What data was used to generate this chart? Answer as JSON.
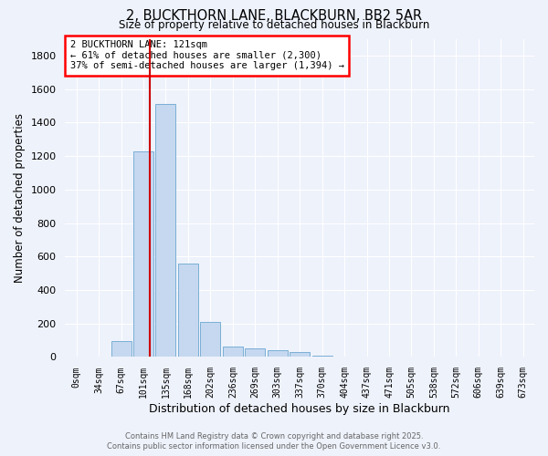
{
  "title": "2, BUCKTHORN LANE, BLACKBURN, BB2 5AR",
  "subtitle": "Size of property relative to detached houses in Blackburn",
  "xlabel": "Distribution of detached houses by size in Blackburn",
  "ylabel": "Number of detached properties",
  "bar_color": "#c5d8f0",
  "bar_edge_color": "#7aafd4",
  "categories": [
    "0sqm",
    "34sqm",
    "67sqm",
    "101sqm",
    "135sqm",
    "168sqm",
    "202sqm",
    "236sqm",
    "269sqm",
    "303sqm",
    "337sqm",
    "370sqm",
    "404sqm",
    "437sqm",
    "471sqm",
    "505sqm",
    "538sqm",
    "572sqm",
    "606sqm",
    "639sqm",
    "673sqm"
  ],
  "values": [
    0,
    0,
    95,
    1230,
    1510,
    560,
    210,
    65,
    50,
    38,
    30,
    10,
    5,
    2,
    1,
    0,
    0,
    0,
    0,
    0,
    0
  ],
  "ylim": [
    0,
    1900
  ],
  "yticks": [
    0,
    200,
    400,
    600,
    800,
    1000,
    1200,
    1400,
    1600,
    1800
  ],
  "annotation_text": "2 BUCKTHORN LANE: 121sqm\n← 61% of detached houses are smaller (2,300)\n37% of semi-detached houses are larger (1,394) →",
  "bg_color": "#eef2fb",
  "grid_color": "#ffffff",
  "footer_line1": "Contains HM Land Registry data © Crown copyright and database right 2025.",
  "footer_line2": "Contains public sector information licensed under the Open Government Licence v3.0.",
  "vline_x_index": 3.27,
  "vline_color": "#cc0000"
}
